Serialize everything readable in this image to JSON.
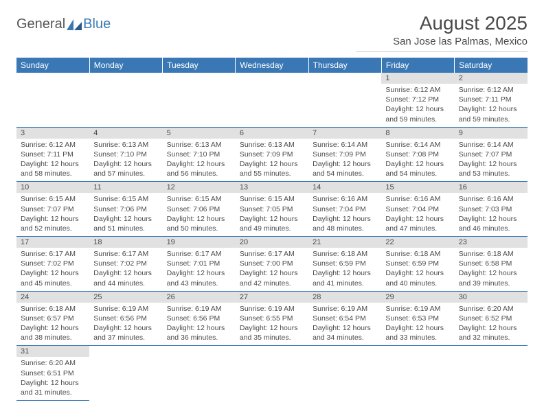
{
  "logo": {
    "text1": "General",
    "text2": "Blue"
  },
  "title": "August 2025",
  "subtitle": "San Jose las Palmas, Mexico",
  "colors": {
    "header_bg": "#3a78b5",
    "header_fg": "#ffffff",
    "daynum_bg": "#e1e1e1",
    "text": "#4a4a4a",
    "row_border": "#3a78b5",
    "page_bg": "#ffffff"
  },
  "fonts": {
    "title_size": 28,
    "subtitle_size": 15,
    "th_size": 12,
    "daynum_size": 11,
    "body_size": 10.5
  },
  "dow": [
    "Sunday",
    "Monday",
    "Tuesday",
    "Wednesday",
    "Thursday",
    "Friday",
    "Saturday"
  ],
  "weeks": [
    [
      null,
      null,
      null,
      null,
      null,
      {
        "n": "1",
        "sr": "6:12 AM",
        "ss": "7:12 PM",
        "dl": "12 hours and 59 minutes."
      },
      {
        "n": "2",
        "sr": "6:12 AM",
        "ss": "7:11 PM",
        "dl": "12 hours and 59 minutes."
      }
    ],
    [
      {
        "n": "3",
        "sr": "6:12 AM",
        "ss": "7:11 PM",
        "dl": "12 hours and 58 minutes."
      },
      {
        "n": "4",
        "sr": "6:13 AM",
        "ss": "7:10 PM",
        "dl": "12 hours and 57 minutes."
      },
      {
        "n": "5",
        "sr": "6:13 AM",
        "ss": "7:10 PM",
        "dl": "12 hours and 56 minutes."
      },
      {
        "n": "6",
        "sr": "6:13 AM",
        "ss": "7:09 PM",
        "dl": "12 hours and 55 minutes."
      },
      {
        "n": "7",
        "sr": "6:14 AM",
        "ss": "7:09 PM",
        "dl": "12 hours and 54 minutes."
      },
      {
        "n": "8",
        "sr": "6:14 AM",
        "ss": "7:08 PM",
        "dl": "12 hours and 54 minutes."
      },
      {
        "n": "9",
        "sr": "6:14 AM",
        "ss": "7:07 PM",
        "dl": "12 hours and 53 minutes."
      }
    ],
    [
      {
        "n": "10",
        "sr": "6:15 AM",
        "ss": "7:07 PM",
        "dl": "12 hours and 52 minutes."
      },
      {
        "n": "11",
        "sr": "6:15 AM",
        "ss": "7:06 PM",
        "dl": "12 hours and 51 minutes."
      },
      {
        "n": "12",
        "sr": "6:15 AM",
        "ss": "7:06 PM",
        "dl": "12 hours and 50 minutes."
      },
      {
        "n": "13",
        "sr": "6:15 AM",
        "ss": "7:05 PM",
        "dl": "12 hours and 49 minutes."
      },
      {
        "n": "14",
        "sr": "6:16 AM",
        "ss": "7:04 PM",
        "dl": "12 hours and 48 minutes."
      },
      {
        "n": "15",
        "sr": "6:16 AM",
        "ss": "7:04 PM",
        "dl": "12 hours and 47 minutes."
      },
      {
        "n": "16",
        "sr": "6:16 AM",
        "ss": "7:03 PM",
        "dl": "12 hours and 46 minutes."
      }
    ],
    [
      {
        "n": "17",
        "sr": "6:17 AM",
        "ss": "7:02 PM",
        "dl": "12 hours and 45 minutes."
      },
      {
        "n": "18",
        "sr": "6:17 AM",
        "ss": "7:02 PM",
        "dl": "12 hours and 44 minutes."
      },
      {
        "n": "19",
        "sr": "6:17 AM",
        "ss": "7:01 PM",
        "dl": "12 hours and 43 minutes."
      },
      {
        "n": "20",
        "sr": "6:17 AM",
        "ss": "7:00 PM",
        "dl": "12 hours and 42 minutes."
      },
      {
        "n": "21",
        "sr": "6:18 AM",
        "ss": "6:59 PM",
        "dl": "12 hours and 41 minutes."
      },
      {
        "n": "22",
        "sr": "6:18 AM",
        "ss": "6:59 PM",
        "dl": "12 hours and 40 minutes."
      },
      {
        "n": "23",
        "sr": "6:18 AM",
        "ss": "6:58 PM",
        "dl": "12 hours and 39 minutes."
      }
    ],
    [
      {
        "n": "24",
        "sr": "6:18 AM",
        "ss": "6:57 PM",
        "dl": "12 hours and 38 minutes."
      },
      {
        "n": "25",
        "sr": "6:19 AM",
        "ss": "6:56 PM",
        "dl": "12 hours and 37 minutes."
      },
      {
        "n": "26",
        "sr": "6:19 AM",
        "ss": "6:56 PM",
        "dl": "12 hours and 36 minutes."
      },
      {
        "n": "27",
        "sr": "6:19 AM",
        "ss": "6:55 PM",
        "dl": "12 hours and 35 minutes."
      },
      {
        "n": "28",
        "sr": "6:19 AM",
        "ss": "6:54 PM",
        "dl": "12 hours and 34 minutes."
      },
      {
        "n": "29",
        "sr": "6:19 AM",
        "ss": "6:53 PM",
        "dl": "12 hours and 33 minutes."
      },
      {
        "n": "30",
        "sr": "6:20 AM",
        "ss": "6:52 PM",
        "dl": "12 hours and 32 minutes."
      }
    ],
    [
      {
        "n": "31",
        "sr": "6:20 AM",
        "ss": "6:51 PM",
        "dl": "12 hours and 31 minutes."
      },
      null,
      null,
      null,
      null,
      null,
      null
    ]
  ],
  "labels": {
    "sunrise": "Sunrise:",
    "sunset": "Sunset:",
    "daylight": "Daylight:"
  }
}
